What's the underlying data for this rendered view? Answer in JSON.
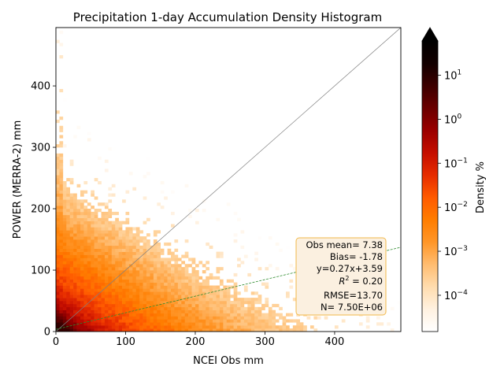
{
  "chart_data": {
    "type": "heatmap",
    "title": "Precipitation 1-day Accumulation Density Histogram",
    "xlabel": "NCEI Obs mm",
    "ylabel": "POWER (MERRA-2) mm",
    "xlim": [
      0,
      495
    ],
    "ylim": [
      0,
      495
    ],
    "xticks": [
      0,
      100,
      200,
      300,
      400
    ],
    "yticks": [
      0,
      100,
      200,
      300,
      400
    ],
    "grid": false,
    "bin_size": 5,
    "colorbar": {
      "label": "Density %",
      "scale": "log",
      "range": [
        1.5e-05,
        60
      ],
      "extend": "max",
      "ticks": [
        {
          "value": 0.0001,
          "base": "10",
          "exp": "−4"
        },
        {
          "value": 0.001,
          "base": "10",
          "exp": "−3"
        },
        {
          "value": 0.01,
          "base": "10",
          "exp": "−2"
        },
        {
          "value": 0.1,
          "base": "10",
          "exp": "−1"
        },
        {
          "value": 1,
          "base": "10",
          "exp": "0"
        },
        {
          "value": 10,
          "base": "10",
          "exp": "1"
        }
      ],
      "colors": [
        "#ffffff",
        "#fff1e0",
        "#ffdcae",
        "#ffbc70",
        "#ff9628",
        "#ff7d00",
        "#ff5a00",
        "#e62c00",
        "#c40e00",
        "#9a0000",
        "#6a0000",
        "#3c0000",
        "#120000",
        "#000000"
      ]
    },
    "reference_lines": [
      {
        "name": "1:1 line",
        "slope": 1,
        "intercept": 0,
        "color": "#808080"
      },
      {
        "name": "fit line",
        "slope": 0.27,
        "intercept": 3.59,
        "color": "#2e8b2e"
      }
    ],
    "stats_box": {
      "lines": [
        "Obs mean= 7.38",
        "Bias= -1.78",
        "y=0.27x+3.59",
        "RMSE=13.70",
        "N= 7.50E+06"
      ],
      "r2_label": "R",
      "r2_exp": "2",
      "r2_value": " = 0.20"
    }
  }
}
